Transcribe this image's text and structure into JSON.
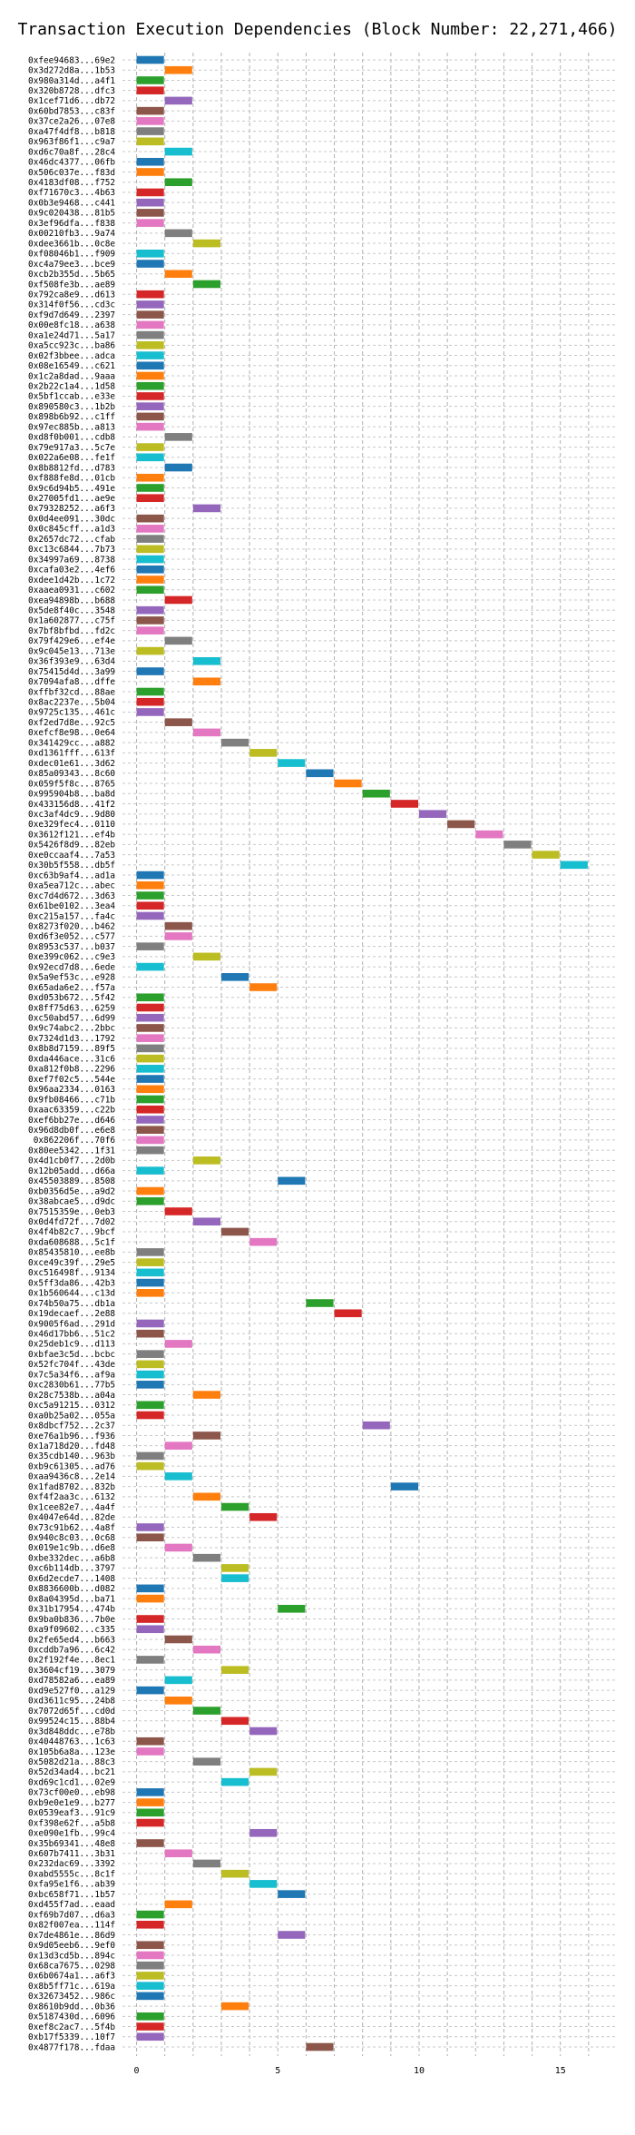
{
  "chart_data": {
    "type": "bar",
    "orientation": "horizontal",
    "title": "Transaction Execution Dependencies (Block Number: 22,271,466)",
    "xlabel": "",
    "ylabel": "",
    "xlim": [
      -0.5,
      17
    ],
    "xticks": [
      0,
      5,
      10,
      15
    ],
    "grid": true,
    "colors": [
      "#1f77b4",
      "#ff7f0e",
      "#2ca02c",
      "#d62728",
      "#9467bd",
      "#8c564b",
      "#e377c2",
      "#7f7f7f",
      "#bcbd22",
      "#17becf"
    ],
    "transactions": [
      {
        "hash": "0xfee94683...69e2",
        "start": 0,
        "end": 1
      },
      {
        "hash": "0x3d272d8a...1b53",
        "start": 1,
        "end": 2
      },
      {
        "hash": "0x980a314d...a4f1",
        "start": 0,
        "end": 1
      },
      {
        "hash": "0x320b8728...dfc3",
        "start": 0,
        "end": 1
      },
      {
        "hash": "0x1cef71d6...db72",
        "start": 1,
        "end": 2
      },
      {
        "hash": "0x60bd7853...c83f",
        "start": 0,
        "end": 1
      },
      {
        "hash": "0x37ce2a26...07e8",
        "start": 0,
        "end": 1
      },
      {
        "hash": "0xa47f4df8...b818",
        "start": 0,
        "end": 1
      },
      {
        "hash": "0x963f86f1...c9a7",
        "start": 0,
        "end": 1
      },
      {
        "hash": "0xd6c70a8f...28c4",
        "start": 1,
        "end": 2
      },
      {
        "hash": "0x46dc4377...06fb",
        "start": 0,
        "end": 1
      },
      {
        "hash": "0x506c037e...f83d",
        "start": 0,
        "end": 1
      },
      {
        "hash": "0x4183df08...f752",
        "start": 1,
        "end": 2
      },
      {
        "hash": "0xf71670c3...4b63",
        "start": 0,
        "end": 1
      },
      {
        "hash": "0x0b3e9468...c441",
        "start": 0,
        "end": 1
      },
      {
        "hash": "0x9c020438...81b5",
        "start": 0,
        "end": 1
      },
      {
        "hash": "0x3ef96dfa...f838",
        "start": 0,
        "end": 1
      },
      {
        "hash": "0x00210fb3...9a74",
        "start": 1,
        "end": 2
      },
      {
        "hash": "0xdee3661b...0c8e",
        "start": 2,
        "end": 3
      },
      {
        "hash": "0xf08046b1...f909",
        "start": 0,
        "end": 1
      },
      {
        "hash": "0xc4a79ee3...bce9",
        "start": 0,
        "end": 1
      },
      {
        "hash": "0xcb2b355d...5b65",
        "start": 1,
        "end": 2
      },
      {
        "hash": "0xf508fe3b...ae89",
        "start": 2,
        "end": 3
      },
      {
        "hash": "0x792ca8e9...d613",
        "start": 0,
        "end": 1
      },
      {
        "hash": "0x314f0f56...cd3c",
        "start": 0,
        "end": 1
      },
      {
        "hash": "0xf9d7d649...2397",
        "start": 0,
        "end": 1
      },
      {
        "hash": "0x00e8fc18...a638",
        "start": 0,
        "end": 1
      },
      {
        "hash": "0xa1e24d71...5a17",
        "start": 0,
        "end": 1
      },
      {
        "hash": "0xa5cc923c...ba86",
        "start": 0,
        "end": 1
      },
      {
        "hash": "0x02f3bbee...adca",
        "start": 0,
        "end": 1
      },
      {
        "hash": "0x08e16549...c621",
        "start": 0,
        "end": 1
      },
      {
        "hash": "0x1c2a8dad...9aaa",
        "start": 0,
        "end": 1
      },
      {
        "hash": "0x2b22c1a4...1d58",
        "start": 0,
        "end": 1
      },
      {
        "hash": "0x5bf1ccab...e33e",
        "start": 0,
        "end": 1
      },
      {
        "hash": "0x890580c3...1b2b",
        "start": 0,
        "end": 1
      },
      {
        "hash": "0x898b6b92...c1ff",
        "start": 0,
        "end": 1
      },
      {
        "hash": "0x97ec885b...a813",
        "start": 0,
        "end": 1
      },
      {
        "hash": "0xd8f0b001...cdb8",
        "start": 1,
        "end": 2
      },
      {
        "hash": "0x79e917a3...5c7e",
        "start": 0,
        "end": 1
      },
      {
        "hash": "0x022a6e08...fe1f",
        "start": 0,
        "end": 1
      },
      {
        "hash": "0x8b8812fd...d783",
        "start": 1,
        "end": 2
      },
      {
        "hash": "0xf888fe8d...01cb",
        "start": 0,
        "end": 1
      },
      {
        "hash": "0x9c6d94b5...491e",
        "start": 0,
        "end": 1
      },
      {
        "hash": "0x27005fd1...ae9e",
        "start": 0,
        "end": 1
      },
      {
        "hash": "0x79328252...a6f3",
        "start": 2,
        "end": 3
      },
      {
        "hash": "0x0d4ee091...30dc",
        "start": 0,
        "end": 1
      },
      {
        "hash": "0x0c845cff...a1d3",
        "start": 0,
        "end": 1
      },
      {
        "hash": "0x2657dc72...cfab",
        "start": 0,
        "end": 1
      },
      {
        "hash": "0xc13c6844...7b73",
        "start": 0,
        "end": 1
      },
      {
        "hash": "0x34997a69...8738",
        "start": 0,
        "end": 1
      },
      {
        "hash": "0xcafa03e2...4ef6",
        "start": 0,
        "end": 1
      },
      {
        "hash": "0xdee1d42b...1c72",
        "start": 0,
        "end": 1
      },
      {
        "hash": "0xaaea0931...c602",
        "start": 0,
        "end": 1
      },
      {
        "hash": "0xea94898b...b688",
        "start": 1,
        "end": 2
      },
      {
        "hash": "0x5de8f40c...3548",
        "start": 0,
        "end": 1
      },
      {
        "hash": "0x1a602877...c75f",
        "start": 0,
        "end": 1
      },
      {
        "hash": "0x7bf8bfbd...fd2c",
        "start": 0,
        "end": 1
      },
      {
        "hash": "0x79f429e6...ef4e",
        "start": 1,
        "end": 2
      },
      {
        "hash": "0x9c045e13...713e",
        "start": 0,
        "end": 1
      },
      {
        "hash": "0x36f393e9...63d4",
        "start": 2,
        "end": 3
      },
      {
        "hash": "0x75415d4d...3a99",
        "start": 0,
        "end": 1
      },
      {
        "hash": "0x7094afa8...dffe",
        "start": 2,
        "end": 3
      },
      {
        "hash": "0xffbf32cd...88ae",
        "start": 0,
        "end": 1
      },
      {
        "hash": "0x8ac2237e...5b04",
        "start": 0,
        "end": 1
      },
      {
        "hash": "0x9725c135...461c",
        "start": 0,
        "end": 1
      },
      {
        "hash": "0xf2ed7d8e...92c5",
        "start": 1,
        "end": 2
      },
      {
        "hash": "0xefcf8e98...0e64",
        "start": 2,
        "end": 3
      },
      {
        "hash": "0x341429cc...a882",
        "start": 3,
        "end": 4
      },
      {
        "hash": "0xd1361fff...613f",
        "start": 4,
        "end": 5
      },
      {
        "hash": "0xdec01e61...3d62",
        "start": 5,
        "end": 6
      },
      {
        "hash": "0x85a09343...8c60",
        "start": 6,
        "end": 7
      },
      {
        "hash": "0x059f5f8c...8765",
        "start": 7,
        "end": 8
      },
      {
        "hash": "0x995904b8...ba8d",
        "start": 8,
        "end": 9
      },
      {
        "hash": "0x433156d8...41f2",
        "start": 9,
        "end": 10
      },
      {
        "hash": "0xc3af4dc9...9d80",
        "start": 10,
        "end": 11
      },
      {
        "hash": "0xe329fec4...0110",
        "start": 11,
        "end": 12
      },
      {
        "hash": "0x3612f121...ef4b",
        "start": 12,
        "end": 13
      },
      {
        "hash": "0x5426f8d9...82eb",
        "start": 13,
        "end": 14
      },
      {
        "hash": "0xe0ccaaf4...7a53",
        "start": 14,
        "end": 15
      },
      {
        "hash": "0x30b5f558...db5f",
        "start": 15,
        "end": 16
      },
      {
        "hash": "0xc63b9af4...ad1a",
        "start": 0,
        "end": 1
      },
      {
        "hash": "0xa5ea712c...abec",
        "start": 0,
        "end": 1
      },
      {
        "hash": "0xc7d4d672...3d63",
        "start": 0,
        "end": 1
      },
      {
        "hash": "0x61be0102...3ea4",
        "start": 0,
        "end": 1
      },
      {
        "hash": "0xc215a157...fa4c",
        "start": 0,
        "end": 1
      },
      {
        "hash": "0x8273f020...b462",
        "start": 1,
        "end": 2
      },
      {
        "hash": "0xd6f3e052...c577",
        "start": 1,
        "end": 2
      },
      {
        "hash": "0x8953c537...b037",
        "start": 0,
        "end": 1
      },
      {
        "hash": "0xe399c062...c9e3",
        "start": 2,
        "end": 3
      },
      {
        "hash": "0x92ecd7d8...6ede",
        "start": 0,
        "end": 1
      },
      {
        "hash": "0x5a9ef53c...e928",
        "start": 3,
        "end": 4
      },
      {
        "hash": "0x65ada6e2...f57a",
        "start": 4,
        "end": 5
      },
      {
        "hash": "0xd053b672...5f42",
        "start": 0,
        "end": 1
      },
      {
        "hash": "0x8ff75d63...6259",
        "start": 0,
        "end": 1
      },
      {
        "hash": "0xc50abd57...6d99",
        "start": 0,
        "end": 1
      },
      {
        "hash": "0x9c74abc2...2bbc",
        "start": 0,
        "end": 1
      },
      {
        "hash": "0x7324d1d3...1792",
        "start": 0,
        "end": 1
      },
      {
        "hash": "0x8b8d7159...89f5",
        "start": 0,
        "end": 1
      },
      {
        "hash": "0xda446ace...31c6",
        "start": 0,
        "end": 1
      },
      {
        "hash": "0xa812f0b8...2296",
        "start": 0,
        "end": 1
      },
      {
        "hash": "0xef7f02c5...544e",
        "start": 0,
        "end": 1
      },
      {
        "hash": "0x96aa2334...0163",
        "start": 0,
        "end": 1
      },
      {
        "hash": "0x9fb08466...c71b",
        "start": 0,
        "end": 1
      },
      {
        "hash": "0xaac63359...c22b",
        "start": 0,
        "end": 1
      },
      {
        "hash": "0xef6bb27e...d646",
        "start": 0,
        "end": 1
      },
      {
        "hash": "0x96d8db0f...e6e8",
        "start": 0,
        "end": 1
      },
      {
        "hash": "0x862206f...70f6",
        "start": 0,
        "end": 1
      },
      {
        "hash": "0x80ee5342...1f31",
        "start": 0,
        "end": 1
      },
      {
        "hash": "0x4d1cb0f7...2d0b",
        "start": 2,
        "end": 3
      },
      {
        "hash": "0x12b05add...d66a",
        "start": 0,
        "end": 1
      },
      {
        "hash": "0x45503889...8508",
        "start": 5,
        "end": 6
      },
      {
        "hash": "0xb0356d5e...a9d2",
        "start": 0,
        "end": 1
      },
      {
        "hash": "0x38abcae5...d9dc",
        "start": 0,
        "end": 1
      },
      {
        "hash": "0x7515359e...0eb3",
        "start": 1,
        "end": 2
      },
      {
        "hash": "0x0d4fd72f...7d02",
        "start": 2,
        "end": 3
      },
      {
        "hash": "0x4f4b82c7...9bcf",
        "start": 3,
        "end": 4
      },
      {
        "hash": "0xda608688...5c1f",
        "start": 4,
        "end": 5
      },
      {
        "hash": "0x85435810...ee8b",
        "start": 0,
        "end": 1
      },
      {
        "hash": "0xce49c39f...29e5",
        "start": 0,
        "end": 1
      },
      {
        "hash": "0xc516498f...9134",
        "start": 0,
        "end": 1
      },
      {
        "hash": "0x5ff3da86...42b3",
        "start": 0,
        "end": 1
      },
      {
        "hash": "0x1b560644...c13d",
        "start": 0,
        "end": 1
      },
      {
        "hash": "0x74b50a75...db1a",
        "start": 6,
        "end": 7
      },
      {
        "hash": "0x19decaef...2e88",
        "start": 7,
        "end": 8
      },
      {
        "hash": "0x9005f6ad...291d",
        "start": 0,
        "end": 1
      },
      {
        "hash": "0x46d17bb6...51c2",
        "start": 0,
        "end": 1
      },
      {
        "hash": "0x25deb1c9...d113",
        "start": 1,
        "end": 2
      },
      {
        "hash": "0xbfae3c5d...bcbc",
        "start": 0,
        "end": 1
      },
      {
        "hash": "0x52fc704f...43de",
        "start": 0,
        "end": 1
      },
      {
        "hash": "0x7c5a34f6...af9a",
        "start": 0,
        "end": 1
      },
      {
        "hash": "0xc2830b61...77b5",
        "start": 0,
        "end": 1
      },
      {
        "hash": "0x28c7538b...a04a",
        "start": 2,
        "end": 3
      },
      {
        "hash": "0xc5a91215...0312",
        "start": 0,
        "end": 1
      },
      {
        "hash": "0xa0b25a02...055a",
        "start": 0,
        "end": 1
      },
      {
        "hash": "0x8dbcf752...2c37",
        "start": 8,
        "end": 9
      },
      {
        "hash": "0xe76a1b96...f936",
        "start": 2,
        "end": 3
      },
      {
        "hash": "0x1a718d20...fd48",
        "start": 1,
        "end": 2
      },
      {
        "hash": "0x35cdb140...963b",
        "start": 0,
        "end": 1
      },
      {
        "hash": "0xb9c61305...ad76",
        "start": 0,
        "end": 1
      },
      {
        "hash": "0xaa9436c8...2e14",
        "start": 1,
        "end": 2
      },
      {
        "hash": "0x1fad8702...832b",
        "start": 9,
        "end": 10
      },
      {
        "hash": "0xf4f2aa3c...6132",
        "start": 2,
        "end": 3
      },
      {
        "hash": "0x1cee82e7...4a4f",
        "start": 3,
        "end": 4
      },
      {
        "hash": "0x4047e64d...82de",
        "start": 4,
        "end": 5
      },
      {
        "hash": "0x73c91b62...4a8f",
        "start": 0,
        "end": 1
      },
      {
        "hash": "0x940c8c03...0c68",
        "start": 0,
        "end": 1
      },
      {
        "hash": "0x019e1c9b...d6e8",
        "start": 1,
        "end": 2
      },
      {
        "hash": "0xbe332dec...a6b8",
        "start": 2,
        "end": 3
      },
      {
        "hash": "0xc6b114db...3797",
        "start": 3,
        "end": 4
      },
      {
        "hash": "0x6d2ecde7...1408",
        "start": 3,
        "end": 4
      },
      {
        "hash": "0x8836600b...d082",
        "start": 0,
        "end": 1
      },
      {
        "hash": "0x8a04395d...ba71",
        "start": 0,
        "end": 1
      },
      {
        "hash": "0x31b17954...474b",
        "start": 5,
        "end": 6
      },
      {
        "hash": "0x9ba0b836...7b0e",
        "start": 0,
        "end": 1
      },
      {
        "hash": "0xa9f09602...c335",
        "start": 0,
        "end": 1
      },
      {
        "hash": "0x2fe65ed4...b663",
        "start": 1,
        "end": 2
      },
      {
        "hash": "0xcddb7a96...6c42",
        "start": 2,
        "end": 3
      },
      {
        "hash": "0x2f192f4e...8ec1",
        "start": 0,
        "end": 1
      },
      {
        "hash": "0x3604cf19...3079",
        "start": 3,
        "end": 4
      },
      {
        "hash": "0xd78582a6...ea89",
        "start": 1,
        "end": 2
      },
      {
        "hash": "0xd9e527f0...a129",
        "start": 0,
        "end": 1
      },
      {
        "hash": "0xd3611c95...24b8",
        "start": 1,
        "end": 2
      },
      {
        "hash": "0x7072d65f...cd0d",
        "start": 2,
        "end": 3
      },
      {
        "hash": "0x99524c15...88b4",
        "start": 3,
        "end": 4
      },
      {
        "hash": "0x3d848ddc...e78b",
        "start": 4,
        "end": 5
      },
      {
        "hash": "0x40448763...1c63",
        "start": 0,
        "end": 1
      },
      {
        "hash": "0x105b6a8a...123e",
        "start": 0,
        "end": 1
      },
      {
        "hash": "0x5082d21a...88c3",
        "start": 2,
        "end": 3
      },
      {
        "hash": "0x52d34ad4...bc21",
        "start": 4,
        "end": 5
      },
      {
        "hash": "0xd69c1cd1...02e9",
        "start": 3,
        "end": 4
      },
      {
        "hash": "0x73cf00e0...eb98",
        "start": 0,
        "end": 1
      },
      {
        "hash": "0xb9e0e1e9...b277",
        "start": 0,
        "end": 1
      },
      {
        "hash": "0x0539eaf3...91c9",
        "start": 0,
        "end": 1
      },
      {
        "hash": "0xf398e62f...a5b8",
        "start": 0,
        "end": 1
      },
      {
        "hash": "0xe090e1fb...99c4",
        "start": 4,
        "end": 5
      },
      {
        "hash": "0x35b69341...48e8",
        "start": 0,
        "end": 1
      },
      {
        "hash": "0x607b7411...3b31",
        "start": 1,
        "end": 2
      },
      {
        "hash": "0x232dac69...3392",
        "start": 2,
        "end": 3
      },
      {
        "hash": "0xabd5555c...8c1f",
        "start": 3,
        "end": 4
      },
      {
        "hash": "0xfa95e1f6...ab39",
        "start": 4,
        "end": 5
      },
      {
        "hash": "0xbc658f71...1b57",
        "start": 5,
        "end": 6
      },
      {
        "hash": "0xd455f7ad...eaad",
        "start": 1,
        "end": 2
      },
      {
        "hash": "0xf69b7d07...d6a3",
        "start": 0,
        "end": 1
      },
      {
        "hash": "0x82f007ea...114f",
        "start": 0,
        "end": 1
      },
      {
        "hash": "0x7de4861e...86d9",
        "start": 5,
        "end": 6
      },
      {
        "hash": "0x9d05eeb6...9ef0",
        "start": 0,
        "end": 1
      },
      {
        "hash": "0x13d3cd5b...894c",
        "start": 0,
        "end": 1
      },
      {
        "hash": "0x68ca7675...0298",
        "start": 0,
        "end": 1
      },
      {
        "hash": "0x6b0674a1...a6f3",
        "start": 0,
        "end": 1
      },
      {
        "hash": "0x8b5ff71c...619a",
        "start": 0,
        "end": 1
      },
      {
        "hash": "0x32673452...986c",
        "start": 0,
        "end": 1
      },
      {
        "hash": "0x8610b9dd...0b36",
        "start": 3,
        "end": 4
      },
      {
        "hash": "0x5187430d...6096",
        "start": 0,
        "end": 1
      },
      {
        "hash": "0xef8c2ac7...5f4b",
        "start": 0,
        "end": 1
      },
      {
        "hash": "0xb17f5339...10f7",
        "start": 0,
        "end": 1
      },
      {
        "hash": "0x4877f178...fdaa",
        "start": 6,
        "end": 7
      }
    ]
  }
}
